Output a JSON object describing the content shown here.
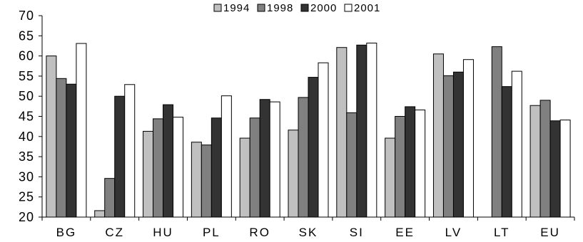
{
  "chart_data": {
    "type": "bar",
    "title": "",
    "xlabel": "",
    "ylabel": "",
    "ylim": [
      20,
      70
    ],
    "yticks": [
      20,
      25,
      30,
      35,
      40,
      45,
      50,
      55,
      60,
      65,
      70
    ],
    "ytick_labels": [
      "20",
      "25",
      "30",
      "35",
      "40",
      "45",
      "50",
      "55",
      "60",
      "65",
      "70"
    ],
    "grid": false,
    "legend_position": "top-center",
    "categories": [
      "BG",
      "CZ",
      "HU",
      "PL",
      "RO",
      "SK",
      "SI",
      "EE",
      "LV",
      "LT",
      "EU"
    ],
    "series": [
      {
        "name": "1994",
        "color": "#c0c0c0",
        "values": [
          60.0,
          21.6,
          41.3,
          38.6,
          39.6,
          41.6,
          62.1,
          39.6,
          60.5,
          null,
          47.7
        ]
      },
      {
        "name": "1998",
        "color": "#808080",
        "values": [
          54.4,
          29.6,
          44.4,
          37.9,
          44.6,
          49.7,
          45.9,
          45.0,
          55.1,
          62.3,
          49.0
        ]
      },
      {
        "name": "2000",
        "color": "#333333",
        "values": [
          53.0,
          50.0,
          47.9,
          44.6,
          49.2,
          54.7,
          62.7,
          47.4,
          56.0,
          52.4,
          43.9
        ]
      },
      {
        "name": "2001",
        "color": "#ffffff",
        "values": [
          63.1,
          52.9,
          44.8,
          50.1,
          48.6,
          58.3,
          63.2,
          46.6,
          59.1,
          56.2,
          44.1
        ]
      }
    ]
  }
}
